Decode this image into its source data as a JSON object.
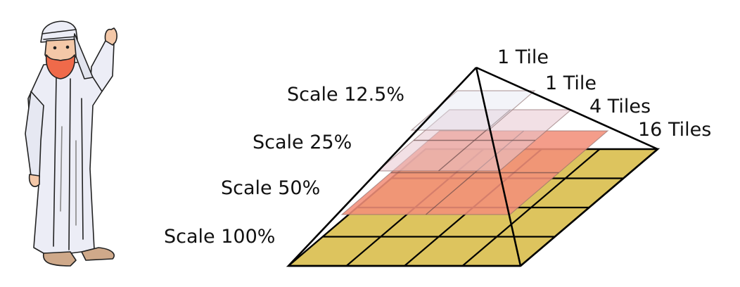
{
  "labels": {
    "scale_100": "Scale 100%",
    "scale_50": "Scale 50%",
    "scale_25": "Scale 25%",
    "scale_12_5": "Scale 12.5%",
    "tiles_top": "1 Tile",
    "tiles_12_5": "1 Tile",
    "tiles_25": "4 Tiles",
    "tiles_100": "16 Tiles"
  },
  "levels": [
    {
      "scale_percent": 100,
      "grid": 4,
      "color": "#ddc45e"
    },
    {
      "scale_percent": 50,
      "grid": 2,
      "color": "#f2907a"
    },
    {
      "scale_percent": 25,
      "grid": 2,
      "color": "#e8c6d0"
    },
    {
      "scale_percent": 12.5,
      "grid": 1,
      "color": "#e4e6f2"
    }
  ],
  "illustration": "old-man-waving-icon",
  "colors": {
    "line": "#000000",
    "background": "#ffffff"
  }
}
